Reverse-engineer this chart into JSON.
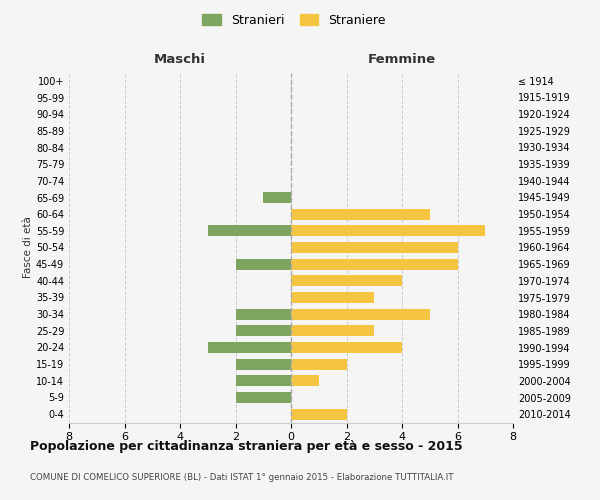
{
  "age_groups": [
    "100+",
    "95-99",
    "90-94",
    "85-89",
    "80-84",
    "75-79",
    "70-74",
    "65-69",
    "60-64",
    "55-59",
    "50-54",
    "45-49",
    "40-44",
    "35-39",
    "30-34",
    "25-29",
    "20-24",
    "15-19",
    "10-14",
    "5-9",
    "0-4"
  ],
  "birth_years": [
    "≤ 1914",
    "1915-1919",
    "1920-1924",
    "1925-1929",
    "1930-1934",
    "1935-1939",
    "1940-1944",
    "1945-1949",
    "1950-1954",
    "1955-1959",
    "1960-1964",
    "1965-1969",
    "1970-1974",
    "1975-1979",
    "1980-1984",
    "1985-1989",
    "1990-1994",
    "1995-1999",
    "2000-2004",
    "2005-2009",
    "2010-2014"
  ],
  "maschi": [
    0,
    0,
    0,
    0,
    0,
    0,
    0,
    1,
    0,
    3,
    0,
    2,
    0,
    0,
    2,
    2,
    3,
    2,
    2,
    2,
    0
  ],
  "femmine": [
    0,
    0,
    0,
    0,
    0,
    0,
    0,
    0,
    5,
    7,
    6,
    6,
    4,
    3,
    5,
    3,
    4,
    2,
    1,
    0,
    2
  ],
  "color_maschi": "#7da560",
  "color_femmine": "#f5c542",
  "title": "Popolazione per cittadinanza straniera per età e sesso - 2015",
  "subtitle": "COMUNE DI COMELICO SUPERIORE (BL) - Dati ISTAT 1° gennaio 2015 - Elaborazione TUTTITALIA.IT",
  "ylabel_left": "Fasce di età",
  "xlabel_maschi": "Maschi",
  "xlabel_femmine": "Femmine",
  "legend_maschi": "Stranieri",
  "legend_femmine": "Straniere",
  "xlim": 8,
  "background_color": "#f5f5f5",
  "grid_color": "#cccccc"
}
